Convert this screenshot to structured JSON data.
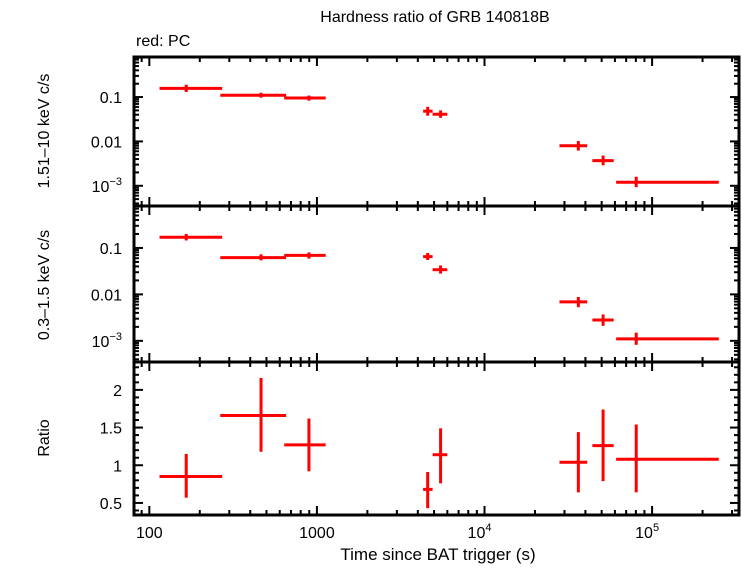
{
  "chart_data": [
    {
      "type": "scatter",
      "panel": "top",
      "title": "Hardness ratio of GRB 140818B",
      "subtitle": "red: PC",
      "ylabel": "1.51–10 keV c/s",
      "yscale": "log",
      "ylim": [
        0.00035,
        0.8
      ],
      "yticks": [
        {
          "v": 0.1,
          "label": "0.1"
        },
        {
          "v": 0.01,
          "label": "0.01"
        },
        {
          "v": 0.001,
          "label": "10",
          "sup": "−3"
        }
      ],
      "series": [
        {
          "name": "PC",
          "color": "#ff0000",
          "points": [
            {
              "x": 166,
              "xlo": 115,
              "xhi": 272,
              "y": 0.157,
              "ylo": 0.13,
              "yhi": 0.19
            },
            {
              "x": 464,
              "xlo": 265,
              "xhi": 655,
              "y": 0.11,
              "ylo": 0.097,
              "yhi": 0.125
            },
            {
              "x": 896,
              "xlo": 638,
              "xhi": 1128,
              "y": 0.095,
              "ylo": 0.083,
              "yhi": 0.108
            },
            {
              "x": 4580,
              "xlo": 4300,
              "xhi": 4900,
              "y": 0.048,
              "ylo": 0.038,
              "yhi": 0.06
            },
            {
              "x": 5470,
              "xlo": 4900,
              "xhi": 6000,
              "y": 0.041,
              "ylo": 0.034,
              "yhi": 0.05
            },
            {
              "x": 36300,
              "xlo": 28000,
              "xhi": 41000,
              "y": 0.008,
              "ylo": 0.0062,
              "yhi": 0.0102
            },
            {
              "x": 51000,
              "xlo": 44000,
              "xhi": 59000,
              "y": 0.0037,
              "ylo": 0.0029,
              "yhi": 0.0048
            },
            {
              "x": 80400,
              "xlo": 61000,
              "xhi": 250000,
              "y": 0.0012,
              "ylo": 0.00093,
              "yhi": 0.0016
            }
          ]
        }
      ]
    },
    {
      "type": "scatter",
      "panel": "middle",
      "ylabel": "0.3–1.5 keV c/s",
      "yscale": "log",
      "ylim": [
        0.00035,
        0.8
      ],
      "yticks": [
        {
          "v": 0.1,
          "label": "0.1"
        },
        {
          "v": 0.01,
          "label": "0.01"
        },
        {
          "v": 0.001,
          "label": "10",
          "sup": "−3"
        }
      ],
      "series": [
        {
          "name": "PC",
          "color": "#ff0000",
          "points": [
            {
              "x": 166,
              "xlo": 115,
              "xhi": 272,
              "y": 0.17,
              "ylo": 0.145,
              "yhi": 0.2
            },
            {
              "x": 464,
              "xlo": 265,
              "xhi": 655,
              "y": 0.062,
              "ylo": 0.054,
              "yhi": 0.073
            },
            {
              "x": 896,
              "xlo": 638,
              "xhi": 1128,
              "y": 0.069,
              "ylo": 0.059,
              "yhi": 0.08
            },
            {
              "x": 4580,
              "xlo": 4300,
              "xhi": 4900,
              "y": 0.065,
              "ylo": 0.055,
              "yhi": 0.078
            },
            {
              "x": 5470,
              "xlo": 4900,
              "xhi": 6000,
              "y": 0.034,
              "ylo": 0.028,
              "yhi": 0.042
            },
            {
              "x": 36300,
              "xlo": 28000,
              "xhi": 41000,
              "y": 0.0069,
              "ylo": 0.0053,
              "yhi": 0.0088
            },
            {
              "x": 51000,
              "xlo": 44000,
              "xhi": 59000,
              "y": 0.0028,
              "ylo": 0.0021,
              "yhi": 0.0037
            },
            {
              "x": 80400,
              "xlo": 61000,
              "xhi": 250000,
              "y": 0.0011,
              "ylo": 0.00082,
              "yhi": 0.0015
            }
          ]
        }
      ]
    },
    {
      "type": "scatter",
      "panel": "bottom",
      "ylabel": "Ratio",
      "xlabel": "Time since BAT trigger (s)",
      "yscale": "linear",
      "ylim": [
        0.34,
        2.37
      ],
      "yticks": [
        {
          "v": 2,
          "label": "2"
        },
        {
          "v": 1.5,
          "label": "1.5"
        },
        {
          "v": 1,
          "label": "1"
        },
        {
          "v": 0.5,
          "label": "0.5"
        }
      ],
      "xscale": "log",
      "xlim": [
        81,
        330000
      ],
      "xticks": [
        {
          "v": 100,
          "label": "100"
        },
        {
          "v": 1000,
          "label": "1000"
        },
        {
          "v": 10000,
          "label": "10",
          "sup": "4"
        },
        {
          "v": 100000,
          "label": "10",
          "sup": "5"
        }
      ],
      "series": [
        {
          "name": "PC",
          "color": "#ff0000",
          "points": [
            {
              "x": 166,
              "xlo": 115,
              "xhi": 272,
              "y": 0.85,
              "ylo": 0.57,
              "yhi": 1.15
            },
            {
              "x": 464,
              "xlo": 265,
              "xhi": 655,
              "y": 1.66,
              "ylo": 1.18,
              "yhi": 2.16
            },
            {
              "x": 896,
              "xlo": 638,
              "xhi": 1128,
              "y": 1.27,
              "ylo": 0.92,
              "yhi": 1.62
            },
            {
              "x": 4580,
              "xlo": 4300,
              "xhi": 4900,
              "y": 0.68,
              "ylo": 0.43,
              "yhi": 0.91
            },
            {
              "x": 5470,
              "xlo": 4900,
              "xhi": 6000,
              "y": 1.14,
              "ylo": 0.76,
              "yhi": 1.49
            },
            {
              "x": 36300,
              "xlo": 28000,
              "xhi": 41000,
              "y": 1.04,
              "ylo": 0.64,
              "yhi": 1.44
            },
            {
              "x": 51000,
              "xlo": 44000,
              "xhi": 59000,
              "y": 1.26,
              "ylo": 0.79,
              "yhi": 1.74
            },
            {
              "x": 80400,
              "xlo": 61000,
              "xhi": 250000,
              "y": 1.08,
              "ylo": 0.64,
              "yhi": 1.54
            }
          ]
        }
      ]
    }
  ],
  "labels": {
    "title": "Hardness ratio of GRB 140818B",
    "legend": "red: PC",
    "xlabel": "Time since BAT trigger (s)",
    "ylabel_top": "1.51–10 keV c/s",
    "ylabel_middle": "0.3–1.5 keV c/s",
    "ylabel_bottom": "Ratio"
  }
}
